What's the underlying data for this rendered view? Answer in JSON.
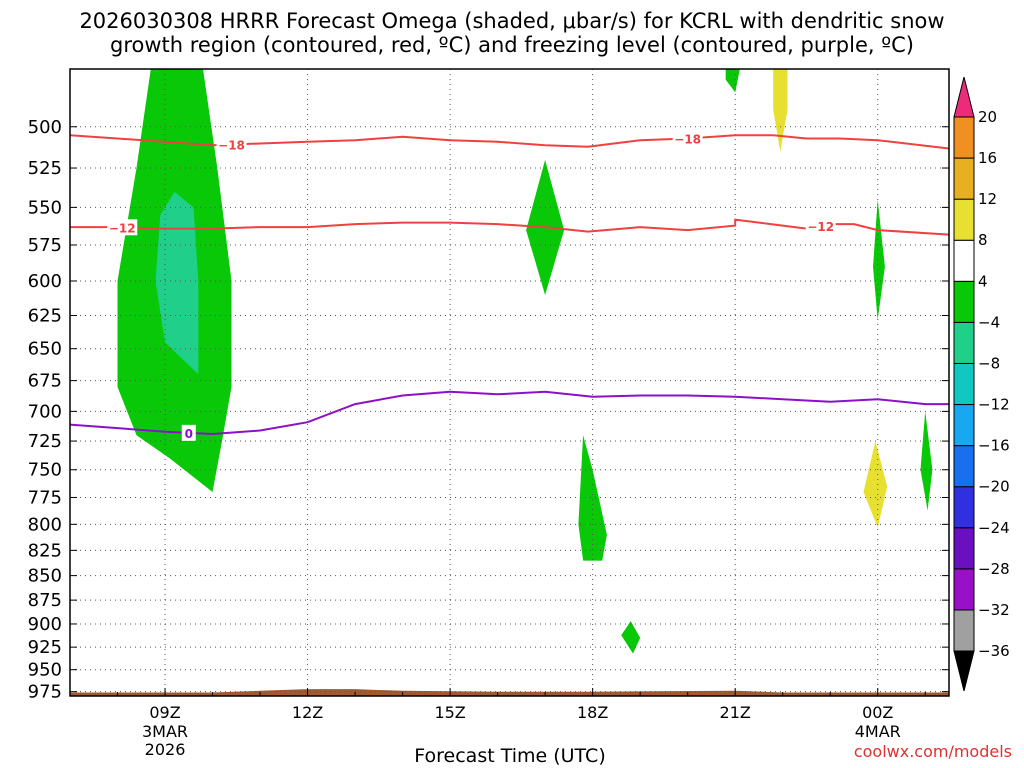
{
  "title_line1": "2026030308 HRRR Forecast Omega (shaded, μbar/s) for KCRL with dendritic snow",
  "title_line2": "growth region (contoured, red, ºC) and freezing level (contoured, purple, ºC)",
  "xaxis_title": "Forecast Time (UTC)",
  "credit": "coolwx.com/models",
  "chart_data": {
    "type": "time-height cross section",
    "station": "KCRL",
    "model": "HRRR",
    "init": "2026030308",
    "x_hours_since_init": [
      0,
      18
    ],
    "xlim_hours_since_init": [
      -1,
      17.5
    ],
    "ylim_hPa": [
      980,
      467
    ],
    "y_scale": "log-pressure (inverted)",
    "y_ticks": [
      500,
      525,
      550,
      575,
      600,
      625,
      650,
      675,
      700,
      725,
      750,
      775,
      800,
      825,
      850,
      875,
      900,
      925,
      950,
      975
    ],
    "x_ticks": [
      {
        "hour": 1,
        "label": "09Z",
        "sub1": "3MAR",
        "sub2": "2026"
      },
      {
        "hour": 4,
        "label": "12Z",
        "sub1": "",
        "sub2": ""
      },
      {
        "hour": 7,
        "label": "15Z",
        "sub1": "",
        "sub2": ""
      },
      {
        "hour": 10,
        "label": "18Z",
        "sub1": "",
        "sub2": ""
      },
      {
        "hour": 13,
        "label": "21Z",
        "sub1": "",
        "sub2": ""
      },
      {
        "hour": 16,
        "label": "00Z",
        "sub1": "4MAR",
        "sub2": ""
      }
    ],
    "grid": true,
    "colorbar": {
      "units": "μbar/s",
      "bounds": [
        -36,
        -32,
        -28,
        -24,
        -20,
        -16,
        -12,
        -8,
        -4,
        4,
        8,
        12,
        16,
        20
      ],
      "colors": [
        "#a0a0a0",
        "#9a10c8",
        "#6a10c0",
        "#3030e0",
        "#1870f0",
        "#18a8f0",
        "#10c8c0",
        "#20d08a",
        "#08c808",
        "#ffffff",
        "#e8e030",
        "#e8b020",
        "#f09020",
        "#f04040",
        "#ee2a7b"
      ],
      "under_color": "#000000",
      "over_color": "#ee2a7b",
      "tick_labels": [
        "20",
        "16",
        "12",
        "8",
        "4",
        "−4",
        "−8",
        "−12",
        "−16",
        "−20",
        "−24",
        "−28",
        "−32",
        "−36"
      ]
    },
    "contours": [
      {
        "name": "-18 ºC isotherm",
        "color": "#f04040",
        "labels": [
          "−18",
          "−18"
        ],
        "points": [
          [
            -1,
            505
          ],
          [
            0,
            507
          ],
          [
            1,
            509
          ],
          [
            2,
            511
          ],
          [
            3,
            510
          ],
          [
            4,
            509
          ],
          [
            5,
            508
          ],
          [
            6,
            506
          ],
          [
            7,
            508
          ],
          [
            8,
            509
          ],
          [
            9,
            511
          ],
          [
            9.9,
            512
          ],
          [
            11,
            508
          ],
          [
            12,
            507
          ],
          [
            13,
            505
          ],
          [
            13.8,
            505
          ],
          [
            14.5,
            507
          ],
          [
            15.2,
            507
          ],
          [
            16,
            508
          ],
          [
            17.5,
            513
          ]
        ]
      },
      {
        "name": "-12 ºC isotherm",
        "color": "#f04040",
        "labels": [
          "−12",
          "−12"
        ],
        "points": [
          [
            -1,
            563
          ],
          [
            0,
            563
          ],
          [
            1,
            564
          ],
          [
            2,
            564
          ],
          [
            3,
            563
          ],
          [
            4,
            563
          ],
          [
            5,
            561
          ],
          [
            6,
            560
          ],
          [
            7,
            560
          ],
          [
            8,
            561
          ],
          [
            9,
            563
          ],
          [
            9.9,
            566
          ],
          [
            11,
            563
          ],
          [
            12,
            565
          ],
          [
            13,
            562
          ],
          [
            13,
            558
          ],
          [
            14,
            562
          ],
          [
            14.5,
            564
          ],
          [
            15,
            561
          ],
          [
            15.5,
            561
          ],
          [
            16,
            565
          ],
          [
            17.5,
            568
          ]
        ]
      },
      {
        "name": "0 ºC isotherm (freezing level)",
        "color": "#8c10c8",
        "labels": [
          "0"
        ],
        "points": [
          [
            -1,
            711
          ],
          [
            0,
            714
          ],
          [
            1,
            717
          ],
          [
            2,
            719
          ],
          [
            3,
            716
          ],
          [
            4,
            709
          ],
          [
            5,
            694
          ],
          [
            6,
            687
          ],
          [
            7,
            684
          ],
          [
            8,
            686
          ],
          [
            9,
            684
          ],
          [
            10,
            688
          ],
          [
            11,
            687
          ],
          [
            12,
            687
          ],
          [
            13,
            688
          ],
          [
            14,
            690
          ],
          [
            15,
            692
          ],
          [
            16,
            690
          ],
          [
            17,
            694
          ],
          [
            17.5,
            694
          ]
        ]
      }
    ],
    "omega_regions": [
      {
        "color_bin": "-8 to -4",
        "color": "#08c808",
        "points": [
          [
            0.4,
            525
          ],
          [
            0.0,
            600
          ],
          [
            0.0,
            680
          ],
          [
            0.4,
            720
          ],
          [
            1.1,
            740
          ],
          [
            2.0,
            770
          ],
          [
            2.2,
            725
          ],
          [
            2.4,
            680
          ],
          [
            2.4,
            600
          ],
          [
            2.1,
            525
          ],
          [
            1.8,
            467
          ],
          [
            0.7,
            467
          ]
        ]
      },
      {
        "color_bin": "-12 to -8",
        "color": "#20d08a",
        "points": [
          [
            0.9,
            555
          ],
          [
            0.8,
            600
          ],
          [
            1.0,
            645
          ],
          [
            1.7,
            670
          ],
          [
            1.7,
            600
          ],
          [
            1.6,
            550
          ],
          [
            1.2,
            540
          ]
        ]
      },
      {
        "color_bin": "-8 to -4",
        "color": "#08c808",
        "points": [
          [
            9.0,
            520
          ],
          [
            8.6,
            565
          ],
          [
            9.0,
            610
          ],
          [
            9.4,
            565
          ]
        ]
      },
      {
        "color_bin": "-8 to -4",
        "color": "#08c808",
        "points": [
          [
            9.8,
            720
          ],
          [
            9.7,
            800
          ],
          [
            9.8,
            835
          ],
          [
            10.2,
            835
          ],
          [
            10.3,
            810
          ],
          [
            10.0,
            750
          ]
        ]
      },
      {
        "color_bin": "-8 to -4",
        "color": "#08c808",
        "points": [
          [
            10.8,
            897
          ],
          [
            10.6,
            912
          ],
          [
            10.85,
            932
          ],
          [
            11.0,
            915
          ]
        ]
      },
      {
        "color_bin": "-8 to -4",
        "color": "#08c808",
        "points": [
          [
            12.8,
            467
          ],
          [
            12.8,
            473
          ],
          [
            13.0,
            480
          ],
          [
            13.1,
            467
          ]
        ]
      },
      {
        "color_bin": "4 to 8",
        "color": "#e8e030",
        "points": [
          [
            13.8,
            467
          ],
          [
            13.8,
            490
          ],
          [
            13.95,
            515
          ],
          [
            14.1,
            490
          ],
          [
            14.1,
            467
          ]
        ]
      },
      {
        "color_bin": "-8 to -4",
        "color": "#08c808",
        "points": [
          [
            16.0,
            545
          ],
          [
            15.9,
            590
          ],
          [
            16.0,
            628
          ],
          [
            16.15,
            590
          ]
        ]
      },
      {
        "color_bin": "4 to 8",
        "color": "#e8e030",
        "points": [
          [
            15.95,
            725
          ],
          [
            15.7,
            770
          ],
          [
            16.0,
            803
          ],
          [
            16.2,
            765
          ]
        ]
      },
      {
        "color_bin": "-8 to -4",
        "color": "#08c808",
        "points": [
          [
            17.0,
            700
          ],
          [
            16.9,
            750
          ],
          [
            17.05,
            787
          ],
          [
            17.15,
            750
          ]
        ]
      }
    ],
    "terrain": {
      "color": "#a05a30",
      "points": [
        [
          -1,
          976
        ],
        [
          2,
          976
        ],
        [
          3,
          974
        ],
        [
          4,
          972
        ],
        [
          5,
          972
        ],
        [
          6,
          974
        ],
        [
          8,
          975
        ],
        [
          10,
          975
        ],
        [
          13,
          974
        ],
        [
          14,
          976
        ],
        [
          17.5,
          976
        ]
      ]
    }
  }
}
